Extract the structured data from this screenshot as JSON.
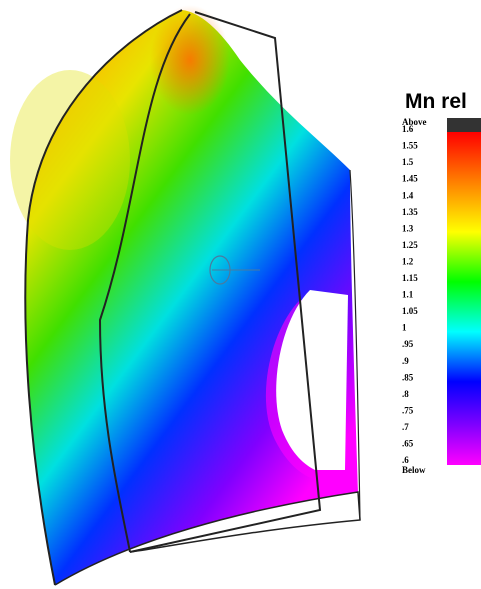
{
  "legend": {
    "title": "Mn rel",
    "above": "Above",
    "below": "Below",
    "labels": [
      "1.6",
      "1.55",
      "1.5",
      "1.45",
      "1.4",
      "1.35",
      "1.3",
      "1.25",
      "1.2",
      "1.15",
      "1.1",
      "1.05",
      "1",
      ".95",
      ".9",
      ".85",
      ".8",
      ".75",
      ".7",
      ".65",
      ".6"
    ]
  }
}
